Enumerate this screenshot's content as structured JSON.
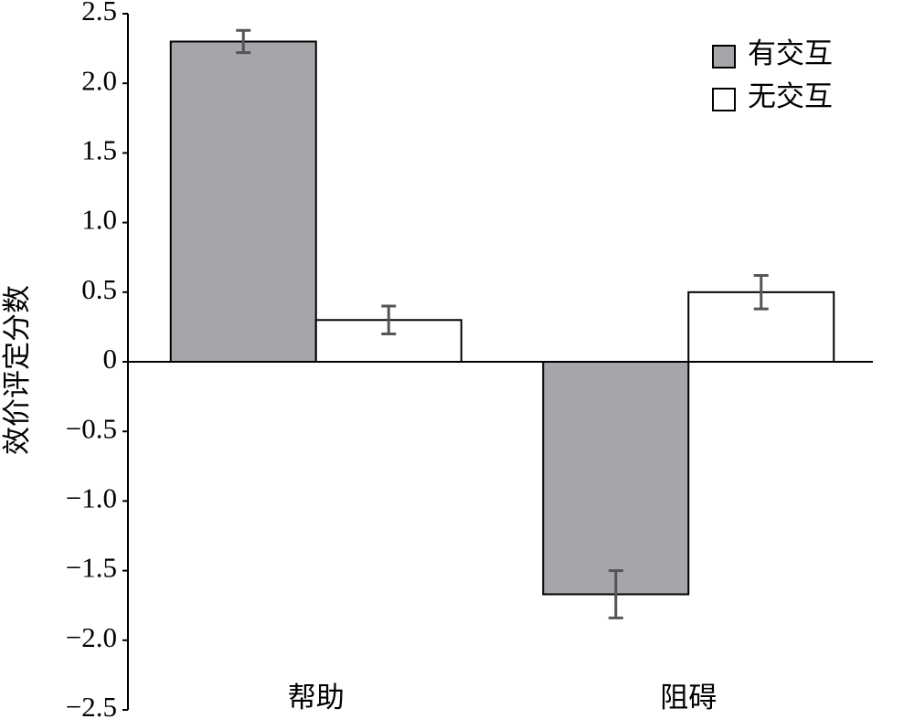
{
  "chart_data": {
    "type": "bar",
    "y_label": "效价评定分数",
    "categories": [
      "帮助",
      "阻碍"
    ],
    "series": [
      {
        "name": "有交互",
        "color": "#a7a5a9",
        "values": [
          2.3,
          -1.67
        ],
        "errors": [
          0.08,
          0.17
        ]
      },
      {
        "name": "无交互",
        "color": "#ffffff",
        "values": [
          0.3,
          0.5
        ],
        "errors": [
          0.1,
          0.12
        ]
      }
    ],
    "ylim": [
      -2.5,
      2.5
    ],
    "yticks": [
      {
        "value": -2.5,
        "label": "−2.5"
      },
      {
        "value": -2.0,
        "label": "−2.0"
      },
      {
        "value": -1.5,
        "label": "−1.5"
      },
      {
        "value": -1.0,
        "label": "−1.0"
      },
      {
        "value": -0.5,
        "label": "−0.5"
      },
      0,
      {
        "value": 0.5,
        "label": "0.5"
      },
      {
        "value": 1.0,
        "label": "1.0"
      },
      {
        "value": 1.5,
        "label": "1.5"
      },
      {
        "value": 2.0,
        "label": "2.0"
      },
      {
        "value": 2.5,
        "label": "2.5"
      }
    ],
    "error_color": "#555555",
    "legend": "upper right"
  }
}
